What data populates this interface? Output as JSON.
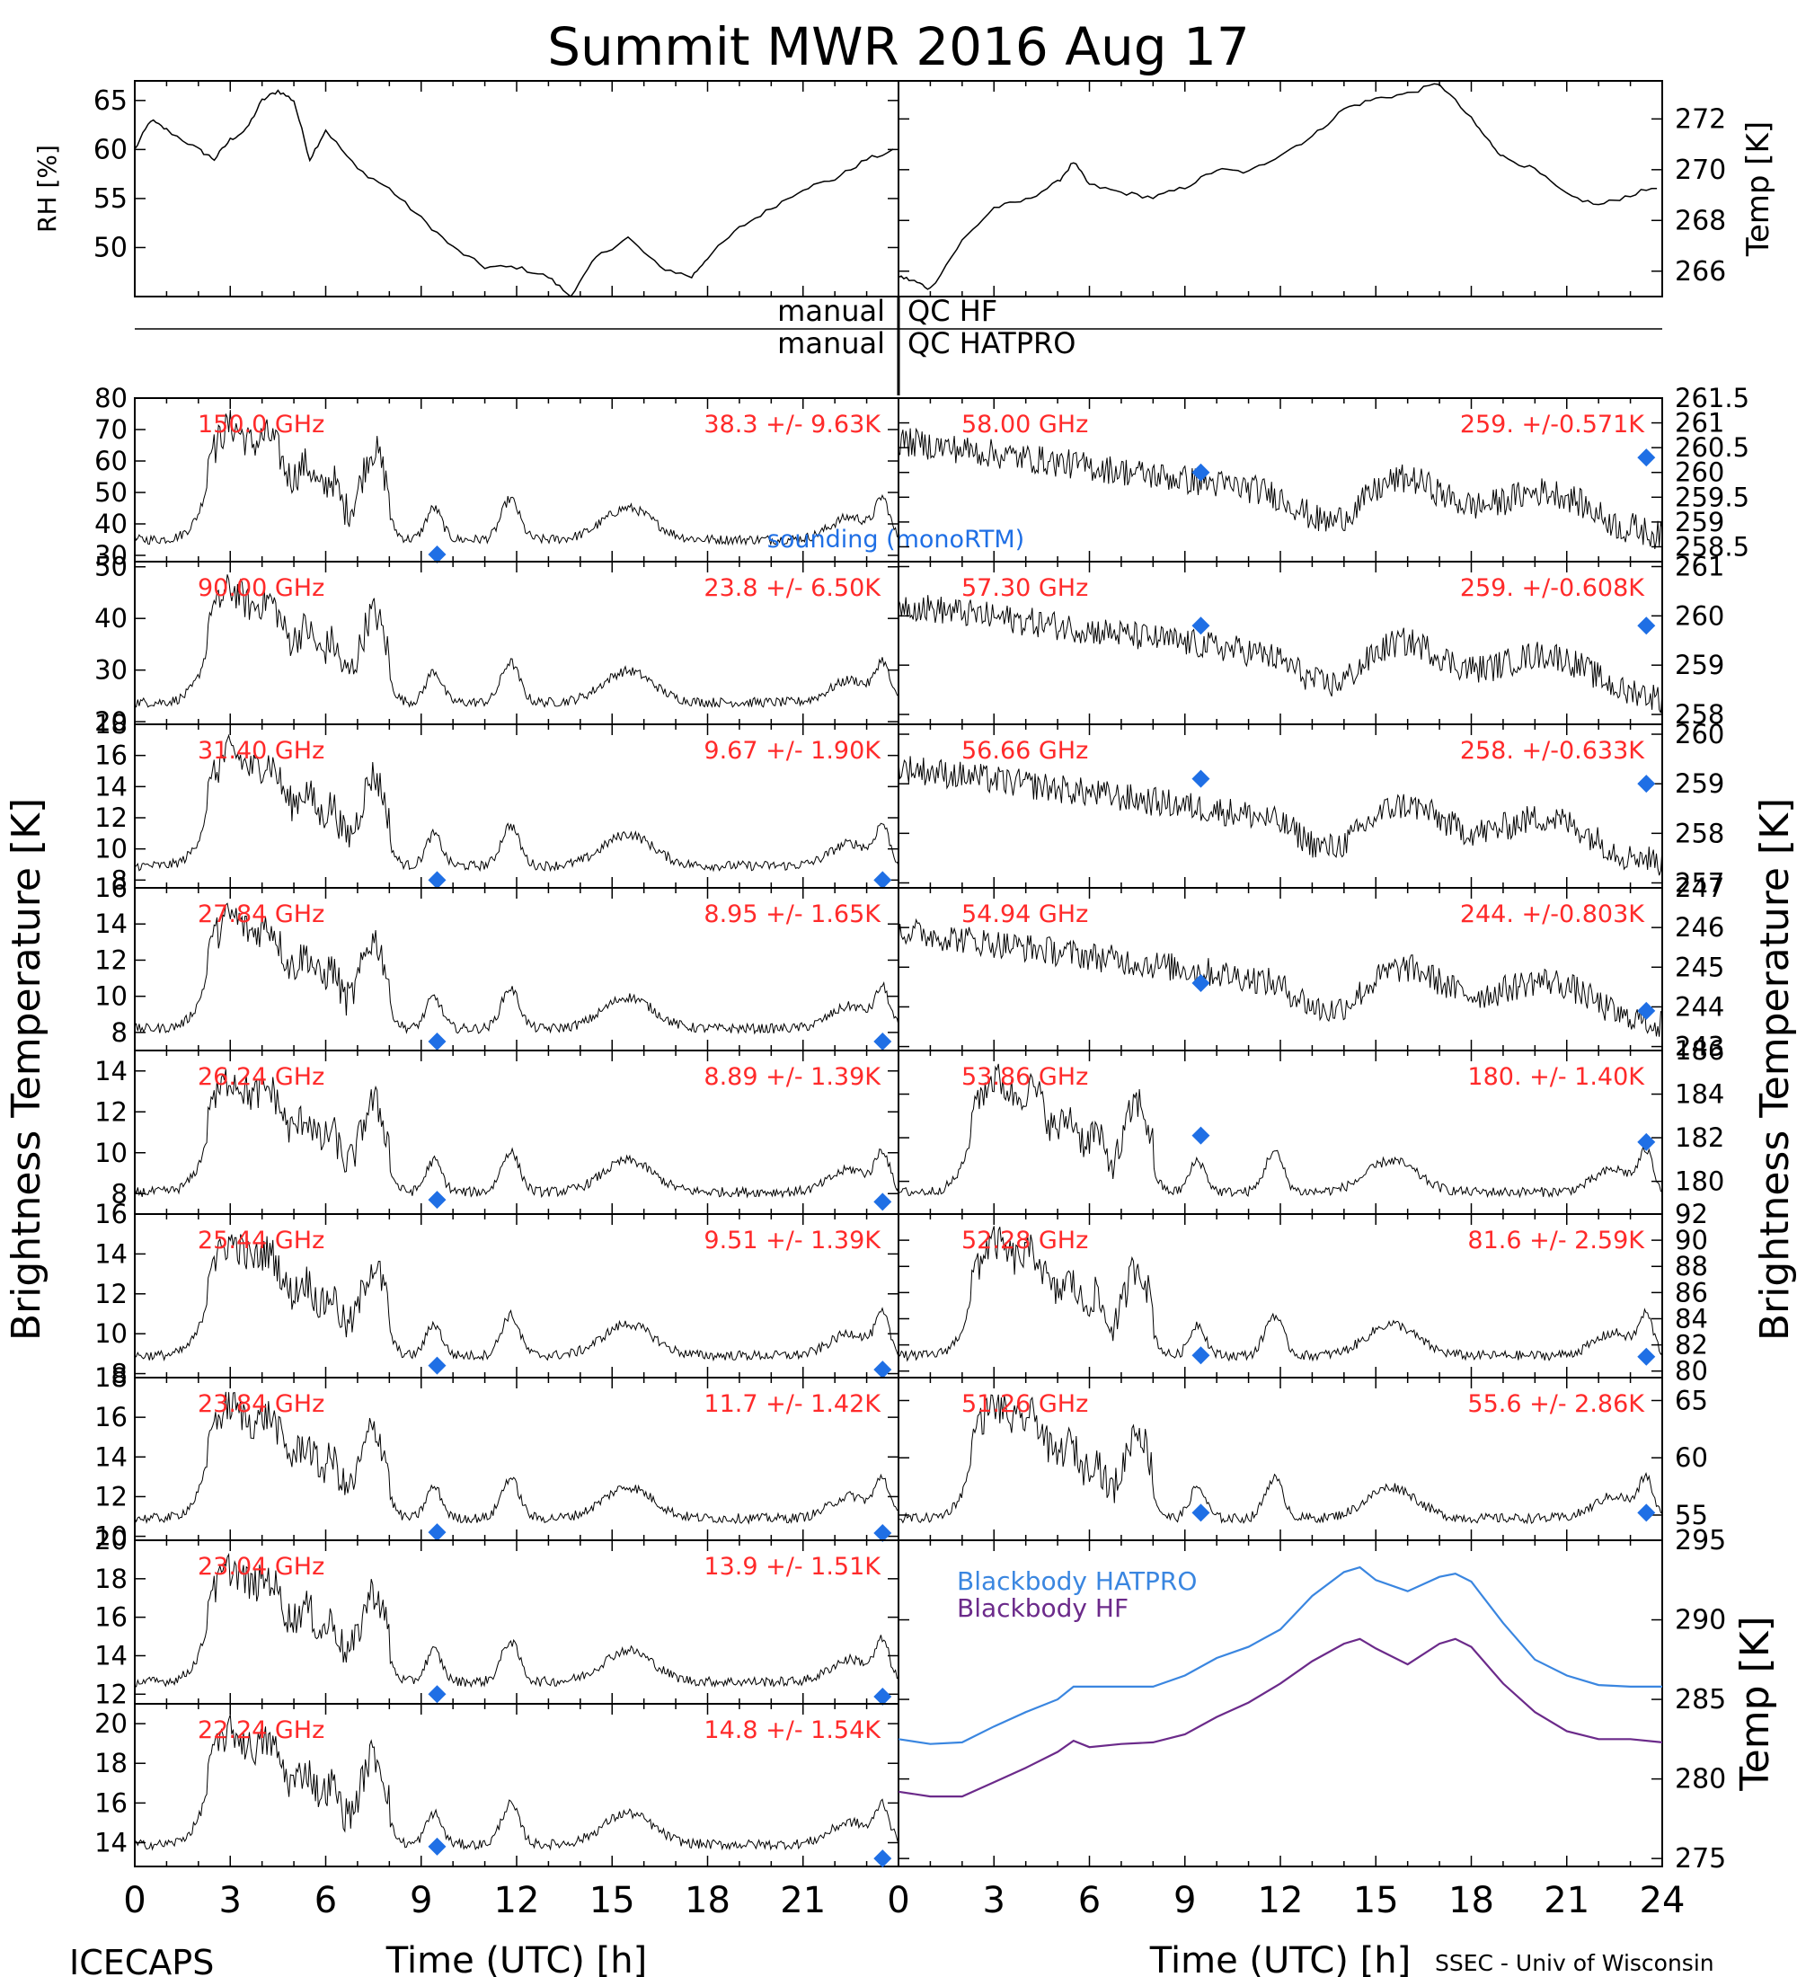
{
  "title": "Summit MWR 2016 Aug 17",
  "footer": {
    "left": "ICECAPS",
    "right": "SSEC - Univ of Wisconsin"
  },
  "colors": {
    "trace": "#000000",
    "label": "#ff2a2a",
    "marker": "#1f6fe5",
    "bb_hatpro": "#3a86e0",
    "bb_hf": "#6b2a8a"
  },
  "qc": {
    "left_top": "manual",
    "right_top": "QC HF",
    "left_bottom": "manual",
    "right_bottom": "QC HATPRO"
  },
  "axes": {
    "xlabel": "Time (UTC) [h]",
    "ylabel_left": "Brightness Temperature [K]",
    "ylabel_right": "Brightness Temperature [K]"
  },
  "chart_data": [
    {
      "type": "line",
      "side": "left",
      "ylabel": "RH [%]",
      "ylim": [
        45,
        67
      ],
      "yticks": [
        50,
        55,
        60,
        65
      ],
      "xlim": [
        0,
        24
      ],
      "x": [
        0,
        0.5,
        1,
        2,
        2.5,
        3,
        3.5,
        4,
        4.5,
        5,
        5.5,
        6,
        7,
        8,
        9,
        10,
        11,
        12,
        13,
        13.7,
        14.5,
        15.5,
        16.5,
        17.5,
        18,
        19,
        20,
        21,
        22,
        23,
        24
      ],
      "y": [
        60,
        63,
        62,
        60,
        59,
        61,
        62,
        65,
        66,
        65,
        59,
        62,
        58,
        56,
        53,
        50,
        48,
        48,
        47,
        45,
        49,
        51,
        48,
        47,
        49,
        52,
        54,
        56,
        57,
        59,
        60
      ]
    },
    {
      "type": "line",
      "side": "right",
      "ylabel": "Temp [K]",
      "ylim": [
        265,
        273.5
      ],
      "yticks": [
        266,
        268,
        270,
        272
      ],
      "xlim": [
        0,
        24
      ],
      "x": [
        0,
        0.5,
        1,
        2,
        3,
        4,
        5,
        5.5,
        6,
        7,
        8,
        9,
        10,
        11,
        12,
        13,
        14,
        15,
        16,
        17,
        18,
        18.5,
        19,
        20,
        21,
        22,
        23,
        24
      ],
      "y": [
        265.8,
        265.6,
        265.3,
        267.2,
        268.5,
        268.8,
        269.5,
        270.3,
        269.4,
        269.1,
        268.9,
        269.3,
        270.0,
        269.9,
        270.6,
        271.3,
        272.4,
        272.8,
        273.0,
        273.4,
        272.0,
        271.2,
        270.5,
        270.0,
        269.0,
        268.6,
        269.0,
        269.4
      ]
    },
    {
      "type": "line",
      "side": "left",
      "freq": "150.0 GHz",
      "stat": "38.3 +/-  9.63K",
      "ylim": [
        28,
        80
      ],
      "yticks": [
        30,
        40,
        50,
        60,
        70,
        80
      ],
      "sounding": [
        [
          9.5,
          28
        ]
      ],
      "sounding_label": "sounding (monoRTM)"
    },
    {
      "type": "line",
      "side": "left",
      "freq": "90.00 GHz",
      "stat": "23.8 +/-  6.50K",
      "ylim": [
        19.5,
        51
      ],
      "yticks": [
        20,
        30,
        40,
        50
      ],
      "sounding": []
    },
    {
      "type": "line",
      "side": "left",
      "freq": "31.40 GHz",
      "stat": "9.67 +/- 1.90K",
      "ylim": [
        7.5,
        18
      ],
      "yticks": [
        8,
        10,
        12,
        14,
        16,
        18
      ],
      "sounding": [
        [
          9.5,
          8
        ],
        [
          23.5,
          8
        ]
      ]
    },
    {
      "type": "line",
      "side": "left",
      "freq": "27.84 GHz",
      "stat": "8.95 +/- 1.65K",
      "ylim": [
        7,
        16
      ],
      "yticks": [
        8,
        10,
        12,
        14,
        16
      ],
      "sounding": [
        [
          9.5,
          7.5
        ],
        [
          23.5,
          7.5
        ]
      ]
    },
    {
      "type": "line",
      "side": "left",
      "freq": "26.24 GHz",
      "stat": "8.89 +/- 1.39K",
      "ylim": [
        7,
        15
      ],
      "yticks": [
        8,
        10,
        12,
        14
      ],
      "sounding": [
        [
          9.5,
          7.7
        ],
        [
          23.5,
          7.6
        ]
      ]
    },
    {
      "type": "line",
      "side": "left",
      "freq": "25.44 GHz",
      "stat": "9.51 +/- 1.39K",
      "ylim": [
        7.8,
        16
      ],
      "yticks": [
        8,
        10,
        12,
        14,
        16
      ],
      "sounding": [
        [
          9.5,
          8.4
        ],
        [
          23.5,
          8.2
        ]
      ]
    },
    {
      "type": "line",
      "side": "left",
      "freq": "23.84 GHz",
      "stat": "11.7 +/- 1.42K",
      "ylim": [
        9.8,
        18
      ],
      "yticks": [
        10,
        12,
        14,
        16,
        18
      ],
      "sounding": [
        [
          9.5,
          10.2
        ],
        [
          23.5,
          9.8
        ]
      ]
    },
    {
      "type": "line",
      "side": "left",
      "freq": "23.04 GHz",
      "stat": "13.9 +/- 1.51K",
      "ylim": [
        11.5,
        20
      ],
      "yticks": [
        12,
        14,
        16,
        18,
        20
      ],
      "sounding": [
        [
          9.5,
          12
        ],
        [
          23.5,
          11.5
        ]
      ]
    },
    {
      "type": "line",
      "side": "left",
      "freq": "22.24 GHz",
      "stat": "14.8 +/- 1.54K",
      "ylim": [
        12.8,
        21
      ],
      "yticks": [
        14,
        16,
        18,
        20
      ],
      "sounding": [
        [
          9.5,
          13.8
        ],
        [
          23.5,
          13.2
        ]
      ]
    },
    {
      "type": "line",
      "side": "right",
      "freq": "58.00 GHz",
      "stat": "259. +/-0.571K",
      "ylim": [
        258.2,
        261.5
      ],
      "yticks": [
        258.5,
        259,
        259.5,
        260,
        260.5,
        261,
        261.5
      ],
      "sounding": [
        [
          9.5,
          260.0
        ],
        [
          23.5,
          260.3
        ]
      ]
    },
    {
      "type": "line",
      "side": "right",
      "freq": "57.30 GHz",
      "stat": "259. +/-0.608K",
      "ylim": [
        257.8,
        261.1
      ],
      "yticks": [
        258,
        259,
        260,
        261
      ],
      "sounding": [
        [
          9.5,
          259.8
        ],
        [
          23.5,
          259.8
        ]
      ]
    },
    {
      "type": "line",
      "side": "right",
      "freq": "56.66 GHz",
      "stat": "258. +/-0.633K",
      "ylim": [
        256.9,
        260.2
      ],
      "yticks": [
        257,
        258,
        259,
        260
      ],
      "sounding": [
        [
          9.5,
          259.1
        ],
        [
          23.5,
          259.0
        ]
      ]
    },
    {
      "type": "line",
      "side": "right",
      "freq": "54.94 GHz",
      "stat": "244. +/-0.803K",
      "ylim": [
        242.9,
        247
      ],
      "yticks": [
        243,
        244,
        245,
        246,
        247
      ],
      "sounding": [
        [
          9.5,
          244.6
        ],
        [
          23.5,
          243.9
        ]
      ]
    },
    {
      "type": "line",
      "side": "right",
      "freq": "53.86 GHz",
      "stat": "180. +/- 1.40K",
      "ylim": [
        178.5,
        186
      ],
      "yticks": [
        180,
        182,
        184,
        186
      ],
      "sounding": [
        [
          9.5,
          182.1
        ],
        [
          23.5,
          181.8
        ]
      ]
    },
    {
      "type": "line",
      "side": "right",
      "freq": "52.28 GHz",
      "stat": "81.6 +/- 2.59K",
      "ylim": [
        79.5,
        92
      ],
      "yticks": [
        80,
        82,
        84,
        86,
        88,
        90,
        92
      ],
      "sounding": [
        [
          9.5,
          81.2
        ],
        [
          23.5,
          81.1
        ]
      ]
    },
    {
      "type": "line",
      "side": "right",
      "freq": "51.26 GHz",
      "stat": "55.6 +/- 2.86K",
      "ylim": [
        52.8,
        67
      ],
      "yticks": [
        55,
        60,
        65
      ],
      "sounding": [
        [
          9.5,
          55.2
        ],
        [
          23.5,
          55.2
        ]
      ]
    },
    {
      "type": "line",
      "side": "right",
      "ylabel": "Temp [K]",
      "ylim": [
        274.5,
        295
      ],
      "yticks": [
        275,
        280,
        285,
        290,
        295
      ],
      "xlim": [
        0,
        24
      ],
      "series": [
        {
          "name": "Blackbody HATPRO",
          "x": [
            0,
            1,
            2,
            3,
            4,
            5,
            5.5,
            6,
            7,
            8,
            9,
            10,
            11,
            12,
            13,
            14,
            14.5,
            15,
            16,
            17,
            17.5,
            18,
            19,
            20,
            21,
            22,
            23,
            24
          ],
          "y": [
            282.5,
            282.2,
            282.3,
            283.3,
            284.2,
            285,
            285.8,
            285.8,
            285.8,
            285.8,
            286.5,
            287.6,
            288.3,
            289.4,
            291.5,
            293,
            293.3,
            292.5,
            291.8,
            292.7,
            292.9,
            292.4,
            289.8,
            287.5,
            286.5,
            285.9,
            285.8,
            285.8
          ]
        },
        {
          "name": "Blackbody HF",
          "x": [
            0,
            1,
            2,
            3,
            4,
            5,
            5.5,
            6,
            7,
            8,
            9,
            10,
            11,
            12,
            13,
            14,
            14.5,
            15,
            16,
            17,
            17.5,
            18,
            19,
            20,
            21,
            22,
            23,
            24
          ],
          "y": [
            279.2,
            278.9,
            278.9,
            279.8,
            280.7,
            281.7,
            282.4,
            282,
            282.2,
            282.3,
            282.8,
            283.9,
            284.8,
            286,
            287.4,
            288.5,
            288.8,
            288.2,
            287.2,
            288.5,
            288.8,
            288.3,
            286,
            284.2,
            283,
            282.5,
            282.5,
            282.3
          ]
        }
      ]
    }
  ],
  "x_ticks": [
    "0",
    "3",
    "6",
    "9",
    "12",
    "15",
    "18",
    "21",
    "24"
  ]
}
